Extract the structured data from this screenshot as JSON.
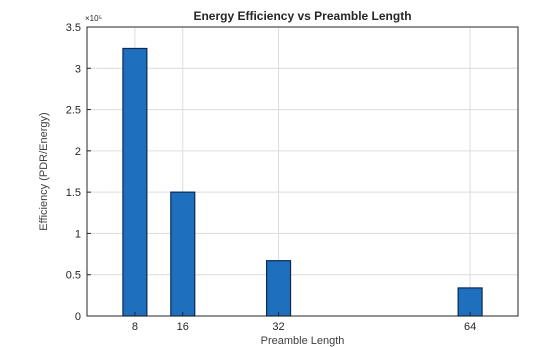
{
  "chart_data": {
    "type": "bar",
    "title": "Energy Efficiency vs Preamble Length",
    "xlabel": "Preamble Length",
    "ylabel": "Efficiency (PDR/Energy)",
    "y_exponent": "×10⁵",
    "x": [
      8,
      16,
      32,
      64
    ],
    "values": [
      3.24,
      1.5,
      0.67,
      0.34
    ],
    "xlim": [
      0,
      72
    ],
    "ylim": [
      0,
      3.5
    ],
    "x_ticks": [
      "8",
      "16",
      "32",
      "64"
    ],
    "y_ticks": [
      "0",
      "0.5",
      "1",
      "1.5",
      "2",
      "2.5",
      "3",
      "3.5"
    ],
    "grid": true,
    "bar_color": "#1f6fbf",
    "bar_edge_color": "#0a2a55"
  }
}
